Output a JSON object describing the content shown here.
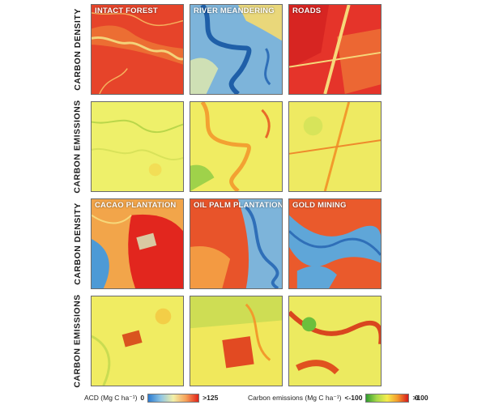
{
  "rows": [
    {
      "label": "CARBON DENSITY"
    },
    {
      "label": "CARBON EMISSIONS"
    },
    {
      "label": "CARBON DENSITY"
    },
    {
      "label": "CARBON EMISSIONS"
    }
  ],
  "scenes": [
    {
      "title": "INTACT FOREST"
    },
    {
      "title": "RIVER MEANDERING"
    },
    {
      "title": "ROADS"
    },
    {
      "title": ""
    },
    {
      "title": ""
    },
    {
      "title": ""
    },
    {
      "title": "CACAO PLANTATION"
    },
    {
      "title": "OIL PALM PLANTATION"
    },
    {
      "title": "GOLD MINING"
    },
    {
      "title": ""
    },
    {
      "title": ""
    },
    {
      "title": ""
    }
  ],
  "legend": {
    "acd": {
      "label": "ACD (Mg C ha⁻¹)",
      "min": "0",
      "max": ">125",
      "colors": [
        "#2b7bd1",
        "#8fc5e3",
        "#f2f0a8",
        "#f6a25a",
        "#e2231a"
      ]
    },
    "emissions": {
      "label": "Carbon emissions (Mg C ha⁻¹)",
      "min": "<-100",
      "mid": "0",
      "max": ">100",
      "colors": [
        "#2f9b2f",
        "#a6d94a",
        "#f5ec4c",
        "#f39a2c",
        "#d7191c"
      ]
    }
  }
}
